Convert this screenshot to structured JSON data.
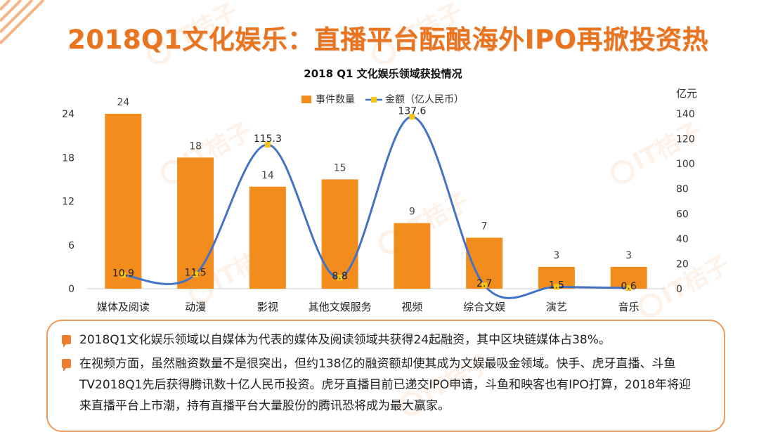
{
  "page": {
    "title": "2018Q1文化娱乐：直播平台酝酿海外IPO再掀投资热",
    "watermark": "IT桔子"
  },
  "colors": {
    "accent": "#e8741f",
    "bar": "#f28c1c",
    "line": "#4472c4",
    "marker": "#f5c518",
    "box_border": "#ef9a5b"
  },
  "chart_data": {
    "type": "bar",
    "title": "2018 Q1 文化娱乐领域获投情况",
    "categories": [
      "媒体及阅读",
      "动漫",
      "影视",
      "其他文娱服务",
      "视频",
      "综合文娱",
      "演艺",
      "音乐"
    ],
    "series": [
      {
        "name": "事件数量",
        "type": "bar",
        "axis": "left",
        "values": [
          24,
          18,
          14,
          15,
          9,
          7,
          3,
          3
        ]
      },
      {
        "name": "金额（亿人民币）",
        "type": "line",
        "axis": "right",
        "values": [
          10.9,
          11.5,
          115.3,
          8.8,
          137.6,
          2.7,
          1.5,
          0.6
        ]
      }
    ],
    "bar_labels": [
      "24",
      "18",
      "14",
      "15",
      "9",
      "7",
      "3",
      "3"
    ],
    "line_labels": [
      "10.9",
      "11.5",
      "115.3",
      "8.8",
      "137.6",
      "2.7",
      "1.5",
      "0.6"
    ],
    "y_left": {
      "min": 0,
      "max": 24,
      "ticks": [
        "0",
        "6",
        "12",
        "18",
        "24"
      ]
    },
    "y_right": {
      "min": 0,
      "max": 140,
      "unit": "亿元",
      "ticks": [
        "0",
        "20",
        "40",
        "60",
        "80",
        "100",
        "120",
        "140"
      ]
    },
    "legend": {
      "position": "top-center",
      "items": [
        "事件数量",
        "金额（亿人民币）"
      ]
    }
  },
  "summary": {
    "bullets": [
      "2018Q1文化娱乐领域以自媒体为代表的媒体及阅读领域共获得24起融资，其中区块链媒体占38%。",
      "在视频方面，虽然融资数量不是很突出，但约138亿的融资额却使其成为文娱最吸金领域。快手、虎牙直播、斗鱼TV2018Q1先后获得腾讯数十亿人民币投资。虎牙直播目前已递交IPO申请，斗鱼和映客也有IPO打算，2018年将迎来直播平台上市潮，持有直播平台大量股份的腾讯恐将成为最大赢家。"
    ]
  }
}
